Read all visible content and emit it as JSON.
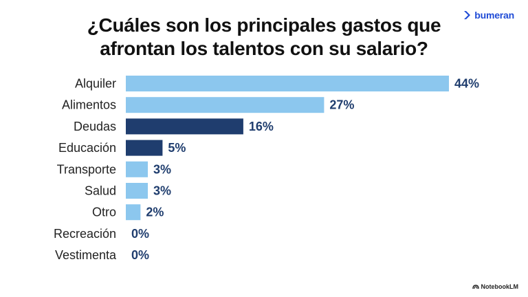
{
  "brand": {
    "name": "bumeran",
    "icon": "bumeran-logo-icon"
  },
  "footer": {
    "credit": "NotebookLM",
    "icon": "notebooklm-logo-icon"
  },
  "colors": {
    "light": "#8cc7ee",
    "dark": "#1f3d6e",
    "label": "#1f3d6e",
    "category": "#222222"
  },
  "chart_data": {
    "type": "bar",
    "orientation": "horizontal",
    "title_lines": [
      "¿Cuáles son los principales gastos que",
      "afrontan los talentos con su salario?"
    ],
    "categories": [
      "Alquiler",
      "Alimentos",
      "Deudas",
      "Educación",
      "Transporte",
      "Salud",
      "Otro",
      "Recreación",
      "Vestimenta"
    ],
    "values": [
      44,
      27,
      16,
      5,
      3,
      3,
      2,
      0,
      0
    ],
    "value_labels": [
      "44%",
      "27%",
      "16%",
      "5%",
      "3%",
      "3%",
      "2%",
      "0%",
      "0%"
    ],
    "highlight": [
      false,
      false,
      true,
      true,
      false,
      false,
      false,
      false,
      false
    ],
    "xlim": [
      0,
      44
    ],
    "grid": false,
    "legend": "none"
  }
}
